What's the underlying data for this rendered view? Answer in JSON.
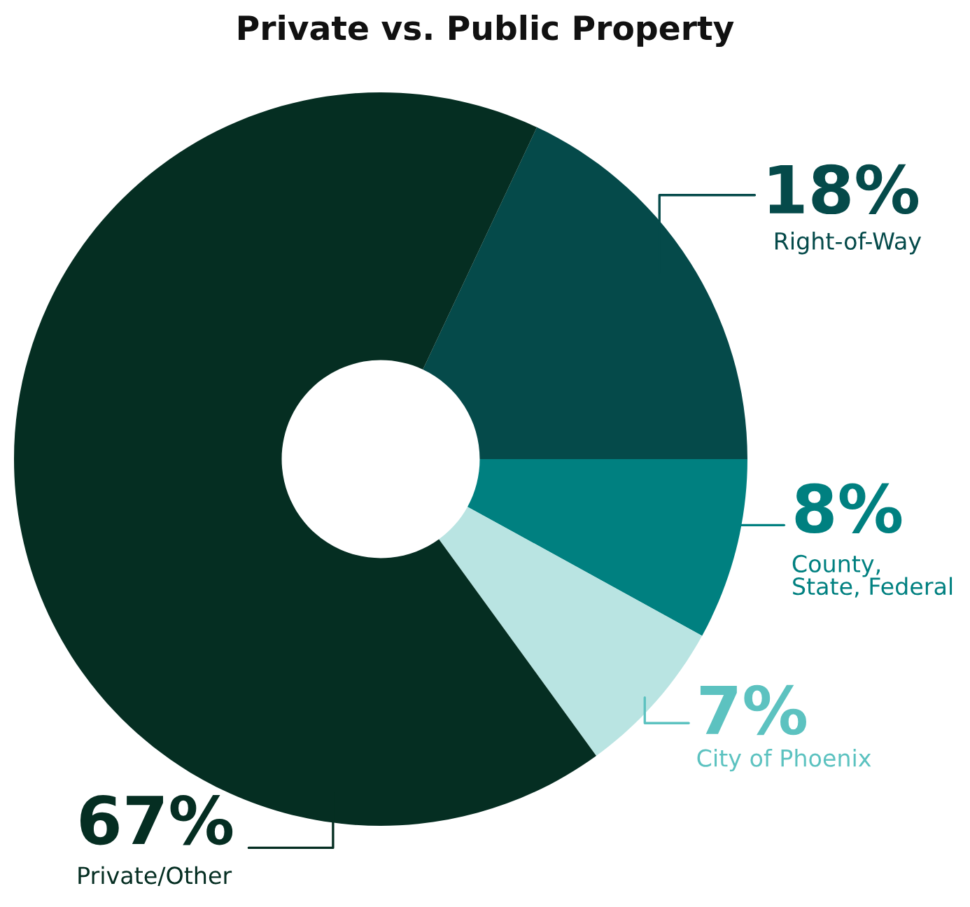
{
  "chart_data": {
    "type": "donut",
    "title": "Private vs. Public Property",
    "categories": [
      "Right-of-Way",
      "County,\nState, Federal",
      "City of Phoenix",
      "Private/Other"
    ],
    "values": [
      18,
      8,
      7,
      67
    ],
    "colors": [
      "#054a4a",
      "#008080",
      "#b9e4e2",
      "#052e22"
    ],
    "value_labels": [
      "18%",
      "8%",
      "7%",
      "67%"
    ],
    "legend": false
  }
}
